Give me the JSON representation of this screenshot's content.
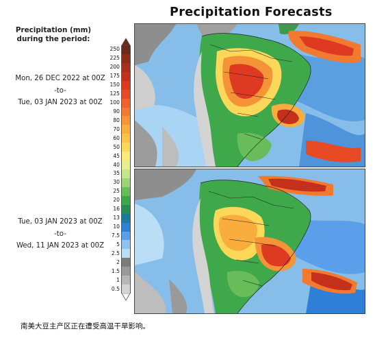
{
  "title": "Precipitation Forecasts",
  "legend_heading": "Precipitation (mm)\nduring the period:",
  "periods": [
    {
      "start": "Mon, 26 DEC 2022 at 00Z",
      "sep": "-to-",
      "end": "Tue, 03 JAN 2023 at 00Z"
    },
    {
      "start": "Tue, 03 JAN 2023 at 00Z",
      "sep": "-to-",
      "end": "Wed, 11 JAN 2023 at 00Z"
    }
  ],
  "colorbar": {
    "labels": [
      "250",
      "225",
      "200",
      "175",
      "150",
      "125",
      "100",
      "90",
      "80",
      "70",
      "60",
      "50",
      "45",
      "40",
      "35",
      "30",
      "25",
      "20",
      "16",
      "13",
      "10",
      "7.5",
      "5",
      "2.5",
      "2",
      "1.5",
      "1",
      "0.5"
    ],
    "colors": [
      "#6b2a1e",
      "#8c2d1a",
      "#a8301a",
      "#c4301c",
      "#de3a22",
      "#e84a26",
      "#f0602c",
      "#f27a30",
      "#f59436",
      "#f8ad3c",
      "#fbc446",
      "#fcd85a",
      "#fbe97c",
      "#e8ef8e",
      "#c6e588",
      "#9bd375",
      "#68bd5a",
      "#3fa84a",
      "#2a8f55",
      "#1e7a9a",
      "#2f7fd6",
      "#5b9fea",
      "#8cc3f0",
      "#b9def6",
      "#7c7c7c",
      "#9a9a9a",
      "#b7b7b7",
      "#d4d4d4"
    ]
  },
  "caption": "南美大豆主产区正在遭受高温干旱影响。"
}
